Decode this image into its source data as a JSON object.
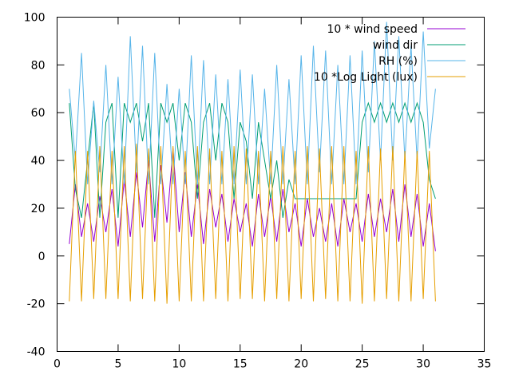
{
  "chart_data": {
    "type": "line",
    "title": "",
    "xlabel": "",
    "ylabel": "",
    "xlim": [
      0,
      35
    ],
    "ylim": [
      -40,
      100
    ],
    "x_ticks": [
      0,
      5,
      10,
      15,
      20,
      25,
      30,
      35
    ],
    "y_ticks": [
      -40,
      -20,
      0,
      20,
      40,
      60,
      80,
      100
    ],
    "grid": false,
    "legend_position": "top-right",
    "series": [
      {
        "name": "10 * wind speed",
        "color": "#9400d3",
        "x": [
          1.0,
          1.5,
          2.0,
          2.5,
          3.0,
          3.5,
          4.0,
          4.5,
          5.0,
          5.5,
          6.0,
          6.5,
          7.0,
          7.5,
          8.0,
          8.5,
          9.0,
          9.5,
          10.0,
          10.5,
          11.0,
          11.5,
          12.0,
          12.5,
          13.0,
          13.5,
          14.0,
          14.5,
          15.0,
          15.5,
          16.0,
          16.5,
          17.0,
          17.5,
          18.0,
          18.5,
          19.0,
          19.5,
          20.0,
          20.5,
          21.0,
          21.5,
          22.0,
          22.5,
          23.0,
          23.5,
          24.0,
          24.5,
          25.0,
          25.5,
          26.0,
          26.5,
          27.0,
          27.5,
          28.0,
          28.5,
          29.0,
          29.5,
          30.0,
          30.5,
          31.0
        ],
        "values": [
          5,
          30,
          8,
          22,
          6,
          25,
          10,
          28,
          4,
          32,
          8,
          35,
          12,
          40,
          6,
          38,
          14,
          45,
          10,
          35,
          8,
          30,
          5,
          28,
          12,
          26,
          6,
          24,
          10,
          22,
          4,
          26,
          8,
          25,
          6,
          28,
          10,
          22,
          4,
          24,
          8,
          20,
          6,
          22,
          4,
          24,
          10,
          22,
          6,
          26,
          8,
          24,
          10,
          28,
          6,
          30,
          8,
          26,
          4,
          22,
          2
        ]
      },
      {
        "name": "wind dir",
        "color": "#009e73",
        "x": [
          1.0,
          1.5,
          2.0,
          2.5,
          3.0,
          3.5,
          4.0,
          4.5,
          5.0,
          5.5,
          6.0,
          6.5,
          7.0,
          7.5,
          8.0,
          8.5,
          9.0,
          9.5,
          10.0,
          10.5,
          11.0,
          11.5,
          12.0,
          12.5,
          13.0,
          13.5,
          14.0,
          14.5,
          15.0,
          15.5,
          16.0,
          16.5,
          17.0,
          17.5,
          18.0,
          18.5,
          19.0,
          19.5,
          20.0,
          20.5,
          21.0,
          21.5,
          22.0,
          22.5,
          23.0,
          23.5,
          24.0,
          24.5,
          25.0,
          25.5,
          26.0,
          26.5,
          27.0,
          27.5,
          28.0,
          28.5,
          29.0,
          29.5,
          30.0,
          30.5,
          31.0
        ],
        "values": [
          64,
          28,
          16,
          40,
          64,
          16,
          56,
          64,
          16,
          64,
          56,
          64,
          48,
          64,
          16,
          64,
          56,
          64,
          40,
          64,
          56,
          24,
          56,
          64,
          40,
          64,
          56,
          24,
          56,
          48,
          24,
          56,
          40,
          24,
          40,
          16,
          32,
          24,
          24,
          24,
          24,
          24,
          24,
          24,
          24,
          24,
          24,
          24,
          56,
          64,
          56,
          64,
          56,
          64,
          56,
          64,
          56,
          64,
          56,
          32,
          24
        ]
      },
      {
        "name": "RH (%)",
        "color": "#56b4e9",
        "x": [
          1.0,
          1.5,
          2.0,
          2.5,
          3.0,
          3.5,
          4.0,
          4.5,
          5.0,
          5.5,
          6.0,
          6.5,
          7.0,
          7.5,
          8.0,
          8.5,
          9.0,
          9.5,
          10.0,
          10.5,
          11.0,
          11.5,
          12.0,
          12.5,
          13.0,
          13.5,
          14.0,
          14.5,
          15.0,
          15.5,
          16.0,
          16.5,
          17.0,
          17.5,
          18.0,
          18.5,
          19.0,
          19.5,
          20.0,
          20.5,
          21.0,
          21.5,
          22.0,
          22.5,
          23.0,
          23.5,
          24.0,
          24.5,
          25.0,
          25.5,
          26.0,
          26.5,
          27.0,
          27.5,
          28.0,
          28.5,
          29.0,
          29.5,
          30.0,
          30.5,
          31.0
        ],
        "values": [
          70,
          40,
          85,
          30,
          65,
          35,
          80,
          30,
          75,
          30,
          92,
          35,
          88,
          30,
          85,
          30,
          72,
          30,
          70,
          30,
          84,
          30,
          82,
          30,
          76,
          30,
          74,
          30,
          78,
          30,
          76,
          30,
          70,
          30,
          80,
          30,
          74,
          30,
          84,
          30,
          88,
          35,
          86,
          30,
          80,
          30,
          84,
          30,
          86,
          35,
          90,
          40,
          98,
          40,
          92,
          40,
          88,
          40,
          94,
          45,
          70
        ]
      },
      {
        "name": "10 *Log Light (lux)",
        "color": "#e69f00",
        "x": [
          1.0,
          1.5,
          2.0,
          2.5,
          3.0,
          3.5,
          4.0,
          4.5,
          5.0,
          5.5,
          6.0,
          6.5,
          7.0,
          7.5,
          8.0,
          8.5,
          9.0,
          9.5,
          10.0,
          10.5,
          11.0,
          11.5,
          12.0,
          12.5,
          13.0,
          13.5,
          14.0,
          14.5,
          15.0,
          15.5,
          16.0,
          16.5,
          17.0,
          17.5,
          18.0,
          18.5,
          19.0,
          19.5,
          20.0,
          20.5,
          21.0,
          21.5,
          22.0,
          22.5,
          23.0,
          23.5,
          24.0,
          24.5,
          25.0,
          25.5,
          26.0,
          26.5,
          27.0,
          27.5,
          28.0,
          28.5,
          29.0,
          29.5,
          30.0,
          30.5,
          31.0
        ],
        "values": [
          -19,
          44,
          -19,
          44,
          -18,
          46,
          -18,
          44,
          -18,
          46,
          -19,
          47,
          -18,
          45,
          -19,
          46,
          -20,
          46,
          -19,
          44,
          -19,
          46,
          -19,
          45,
          -18,
          44,
          -19,
          46,
          -18,
          45,
          -18,
          44,
          -19,
          44,
          -18,
          46,
          -19,
          44,
          -18,
          46,
          -19,
          45,
          -18,
          46,
          -19,
          46,
          -19,
          44,
          -20,
          46,
          -19,
          45,
          -18,
          46,
          -19,
          44,
          -19,
          44,
          -18,
          44,
          -19
        ]
      }
    ]
  }
}
